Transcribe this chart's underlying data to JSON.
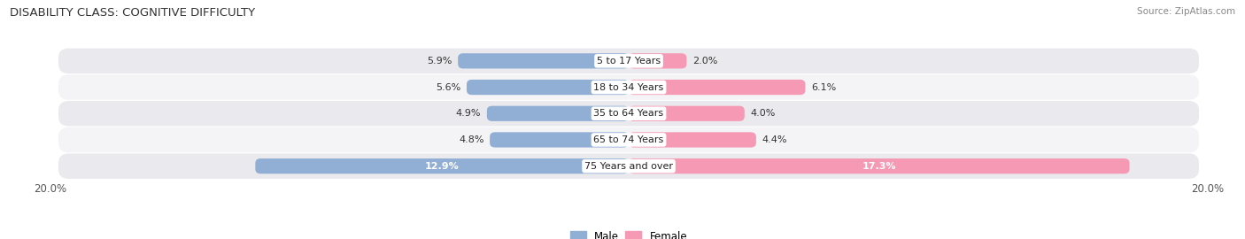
{
  "title": "DISABILITY CLASS: COGNITIVE DIFFICULTY",
  "source": "Source: ZipAtlas.com",
  "categories": [
    "5 to 17 Years",
    "18 to 34 Years",
    "35 to 64 Years",
    "65 to 74 Years",
    "75 Years and over"
  ],
  "male_values": [
    5.9,
    5.6,
    4.9,
    4.8,
    12.9
  ],
  "female_values": [
    2.0,
    6.1,
    4.0,
    4.4,
    17.3
  ],
  "max_val": 20.0,
  "male_color": "#91aed4",
  "female_color": "#f599b4",
  "row_bg_light": "#f4f4f6",
  "row_bg_dark": "#eaeaee",
  "label_color": "#222222",
  "title_color": "#333333",
  "source_color": "#888888",
  "bar_height": 0.58,
  "legend_male_color": "#91aed4",
  "legend_female_color": "#f599b4"
}
